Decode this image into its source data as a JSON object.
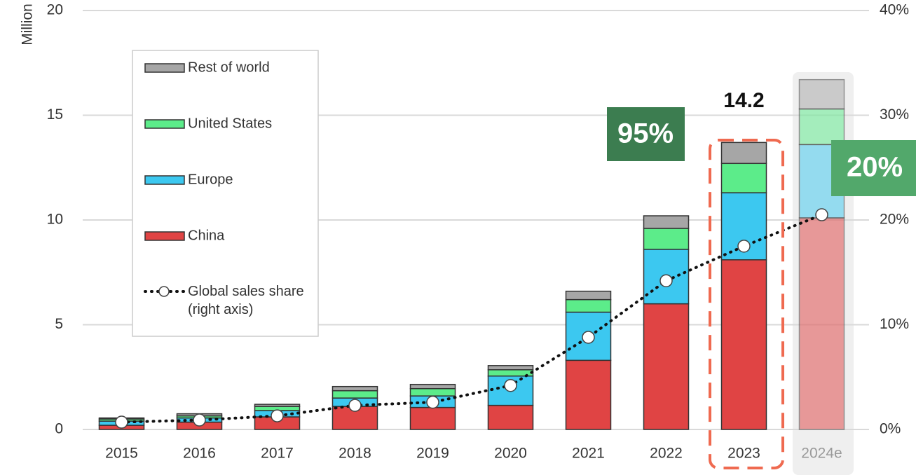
{
  "chart_data": {
    "type": "stacked_bar_line",
    "y_axis_label": "Million",
    "categories": [
      "2015",
      "2016",
      "2017",
      "2018",
      "2019",
      "2020",
      "2021",
      "2022",
      "2023",
      "2024e"
    ],
    "forecast_from": "2024e",
    "series": [
      {
        "name": "China",
        "color": "#e04444",
        "values": [
          0.2,
          0.35,
          0.6,
          1.1,
          1.05,
          1.15,
          3.3,
          6.0,
          8.1,
          10.1
        ]
      },
      {
        "name": "Europe",
        "color": "#3cc8f0",
        "values": [
          0.2,
          0.2,
          0.3,
          0.4,
          0.55,
          1.4,
          2.3,
          2.6,
          3.2,
          3.5
        ]
      },
      {
        "name": "United States",
        "color": "#5cec8a",
        "values": [
          0.1,
          0.1,
          0.2,
          0.35,
          0.35,
          0.3,
          0.6,
          1.0,
          1.4,
          1.7
        ]
      },
      {
        "name": "Rest of world",
        "color": "#a6a6a6",
        "values": [
          0.05,
          0.1,
          0.1,
          0.2,
          0.2,
          0.2,
          0.4,
          0.6,
          1.0,
          1.4
        ]
      },
      {
        "name": "Global sales share (right axis)",
        "type": "line",
        "axis": "y2",
        "color": "#111111",
        "values": [
          0.7,
          0.9,
          1.3,
          2.3,
          2.6,
          4.2,
          8.8,
          14.2,
          17.5,
          20.5
        ]
      }
    ],
    "ylim": [
      0,
      20
    ],
    "yticks": [
      0,
      5,
      10,
      15,
      20
    ],
    "y2lim": [
      0,
      40
    ],
    "y2ticks": [
      {
        "value": 0,
        "label": "0%"
      },
      {
        "value": 10,
        "label": "10%"
      },
      {
        "value": 20,
        "label": "20%"
      },
      {
        "value": 30,
        "label": "30%"
      },
      {
        "value": 40,
        "label": "40%"
      }
    ],
    "grid": true,
    "legend": "upper left",
    "annotations": [
      "14.2",
      "95%",
      "20%"
    ]
  }
}
